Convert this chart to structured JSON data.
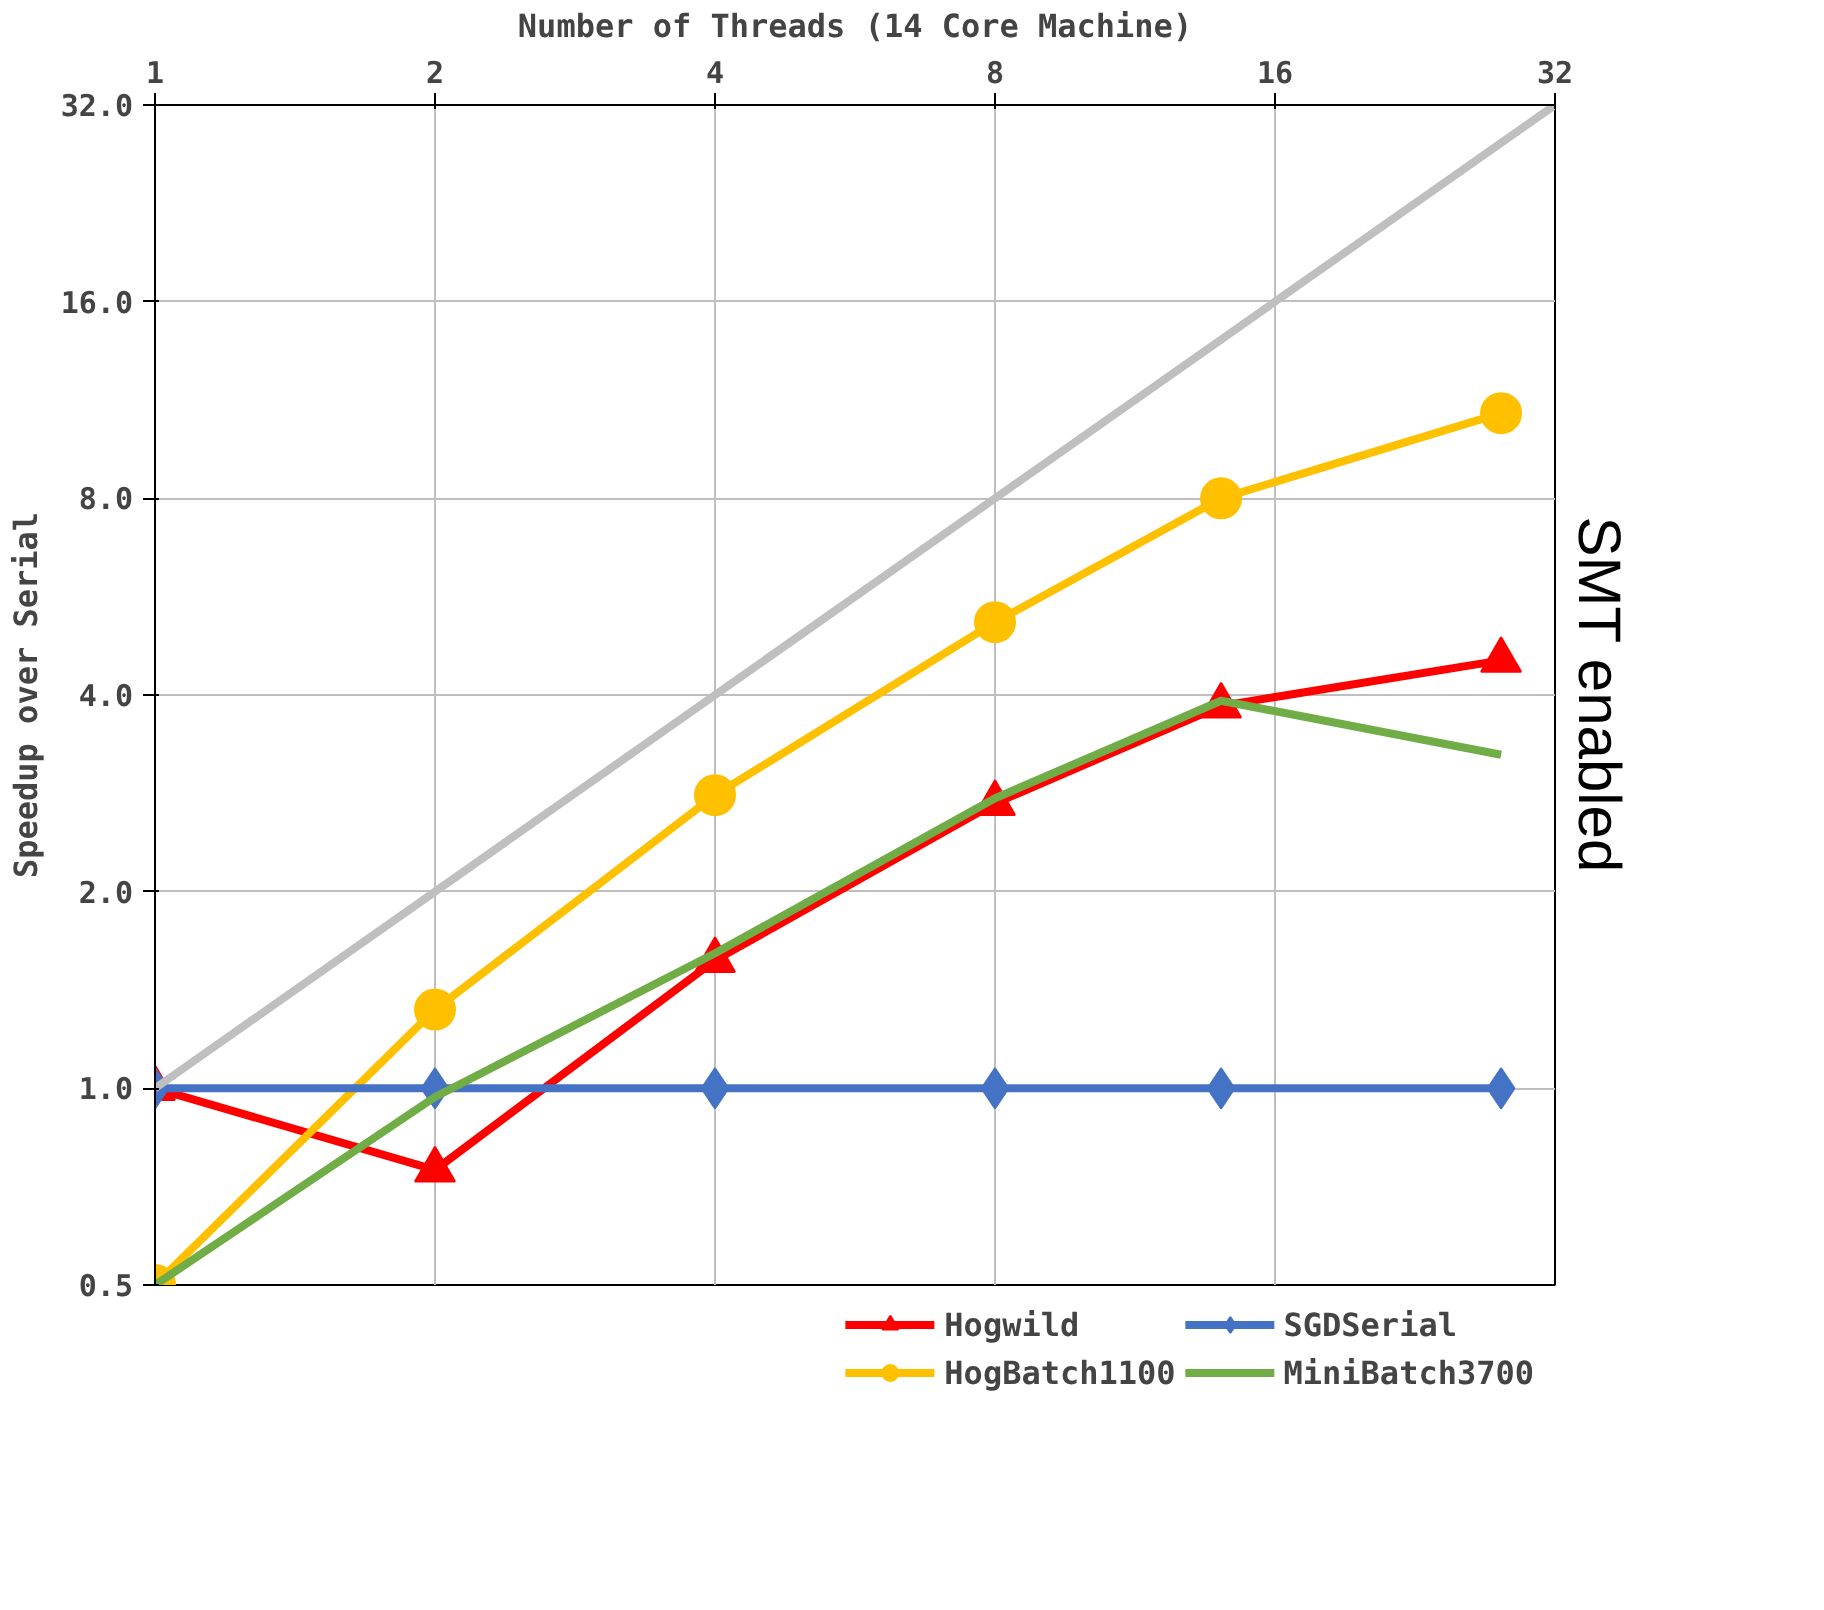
{
  "chart_data": {
    "type": "line",
    "xlabel": "Number of Threads (14 Core Machine)",
    "ylabel": "Speedup over Serial",
    "x": [
      1,
      2,
      4,
      8,
      14,
      28
    ],
    "series": [
      {
        "name": "Hogwild",
        "color": "#ff0000",
        "marker": "triangle",
        "values": [
          1.0,
          0.75,
          1.57,
          2.73,
          3.85,
          4.52
        ]
      },
      {
        "name": "HogBatch1100",
        "color": "#ffc000",
        "marker": "circle",
        "values": [
          0.5,
          1.32,
          2.81,
          5.17,
          8.0,
          10.8
        ]
      },
      {
        "name": "SGDSerial",
        "color": "#4472c4",
        "marker": "diamond",
        "values": [
          1.0,
          1.0,
          1.0,
          1.0,
          1.0,
          1.0
        ]
      },
      {
        "name": "MiniBatch3700",
        "color": "#70ad47",
        "marker": "none",
        "values": [
          0.5,
          0.97,
          1.61,
          2.78,
          3.92,
          3.24
        ]
      },
      {
        "color": "#bfbfbf",
        "marker": "none",
        "x": [
          1,
          32
        ],
        "values": [
          1,
          32
        ]
      }
    ],
    "log": "xy",
    "xlim": [
      1,
      32
    ],
    "xticks": [
      1,
      2,
      4,
      8,
      16,
      32
    ],
    "ylim": [
      0.5,
      32
    ],
    "yticks": [
      {
        "value": 0.5,
        "label": "0.5"
      },
      {
        "value": 1,
        "label": "1.0"
      },
      {
        "value": 2,
        "label": "2.0"
      },
      {
        "value": 4,
        "label": "4.0"
      },
      {
        "value": 8,
        "label": "8.0"
      },
      {
        "value": 16,
        "label": "16.0"
      },
      {
        "value": 32,
        "label": "32.0"
      }
    ],
    "grid": true,
    "legend": "bottom",
    "annotations": [
      "SMT enabled"
    ]
  }
}
